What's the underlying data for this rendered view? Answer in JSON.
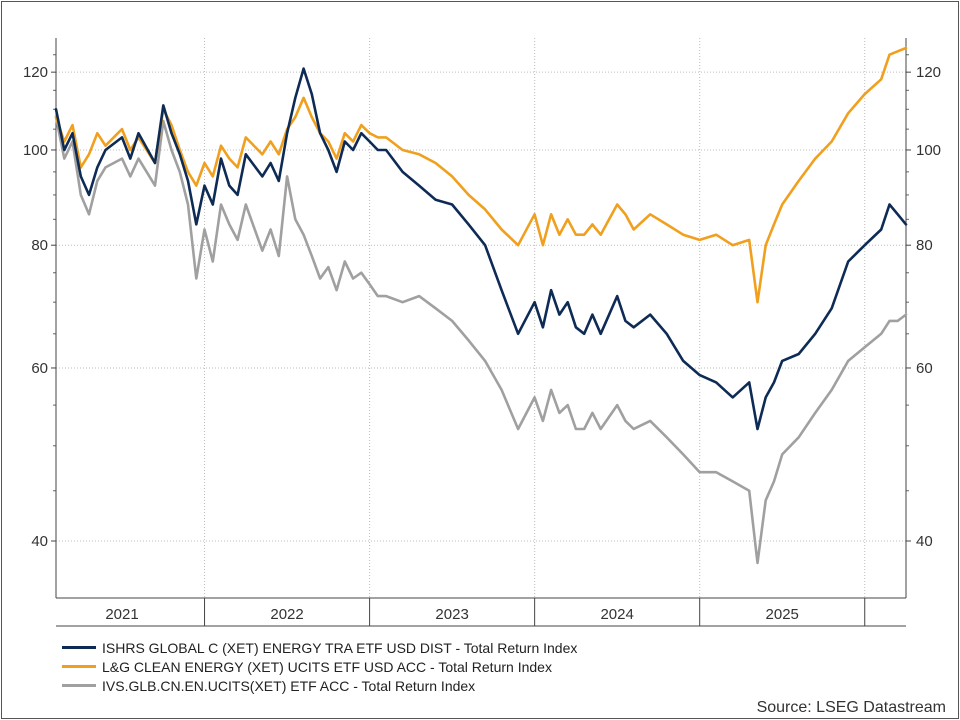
{
  "chart_data": {
    "type": "line",
    "y_scale": "log",
    "ylim": [
      35,
      130
    ],
    "y_ticks": [
      40,
      60,
      80,
      100,
      120
    ],
    "y_tick_labels": [
      "40",
      "60",
      "80",
      "100",
      "120"
    ],
    "xlim": [
      2020.6,
      2025.75
    ],
    "x_ticks": [
      2021.0,
      2022.0,
      2023.0,
      2024.0,
      2025.0
    ],
    "x_tick_labels": [
      "2021",
      "2022",
      "2023",
      "2024",
      "2025"
    ],
    "x_year_boundaries": [
      2021.5,
      2022.5,
      2023.5,
      2024.5,
      2025.5
    ],
    "grid": true,
    "legend_position": "bottom-left",
    "series": [
      {
        "name": "ISHRS GLOBAL C (XET) ENERGY TRA ETF USD DIST - Total Return Index",
        "color": "#0d2b55",
        "x": [
          2020.6,
          2020.65,
          2020.7,
          2020.75,
          2020.8,
          2020.85,
          2020.9,
          2021.0,
          2021.05,
          2021.1,
          2021.2,
          2021.25,
          2021.3,
          2021.35,
          2021.4,
          2021.45,
          2021.5,
          2021.55,
          2021.6,
          2021.65,
          2021.7,
          2021.75,
          2021.85,
          2021.9,
          2021.95,
          2022.0,
          2022.05,
          2022.1,
          2022.15,
          2022.2,
          2022.25,
          2022.3,
          2022.35,
          2022.4,
          2022.45,
          2022.5,
          2022.55,
          2022.6,
          2022.7,
          2022.8,
          2022.9,
          2023.0,
          2023.1,
          2023.2,
          2023.3,
          2023.4,
          2023.5,
          2023.55,
          2023.6,
          2023.65,
          2023.7,
          2023.75,
          2023.8,
          2023.85,
          2023.9,
          2024.0,
          2024.05,
          2024.1,
          2024.2,
          2024.3,
          2024.4,
          2024.5,
          2024.6,
          2024.7,
          2024.8,
          2024.85,
          2024.9,
          2024.95,
          2025.0,
          2025.1,
          2025.2,
          2025.3,
          2025.4,
          2025.5,
          2025.6,
          2025.65,
          2025.7,
          2025.75
        ],
        "values": [
          110,
          100,
          104,
          94,
          90,
          96,
          100,
          103,
          98,
          104,
          97,
          111,
          104,
          99,
          93,
          84,
          92,
          88,
          98,
          92,
          90,
          99,
          94,
          97,
          93,
          104,
          113,
          121,
          114,
          104,
          100,
          95,
          102,
          100,
          104,
          102,
          100,
          100,
          95,
          92,
          89,
          88,
          84,
          80,
          72,
          65,
          70,
          66,
          72,
          68,
          70,
          66,
          65,
          68,
          65,
          71,
          67,
          66,
          68,
          65,
          61,
          59,
          58,
          56,
          58,
          52,
          56,
          58,
          61,
          62,
          65,
          69,
          77,
          80,
          83,
          88,
          86,
          84
        ]
      },
      {
        "name": "L&G CLEAN ENERGY (XET) UCITS ETF USD ACC - Total Return Index",
        "color": "#f0a01e",
        "x": [
          2020.6,
          2020.65,
          2020.7,
          2020.75,
          2020.8,
          2020.85,
          2020.9,
          2021.0,
          2021.05,
          2021.1,
          2021.2,
          2021.25,
          2021.3,
          2021.35,
          2021.4,
          2021.45,
          2021.5,
          2021.55,
          2021.6,
          2021.65,
          2021.7,
          2021.75,
          2021.85,
          2021.9,
          2021.95,
          2022.0,
          2022.05,
          2022.1,
          2022.15,
          2022.2,
          2022.25,
          2022.3,
          2022.35,
          2022.4,
          2022.45,
          2022.5,
          2022.55,
          2022.6,
          2022.7,
          2022.8,
          2022.9,
          2023.0,
          2023.1,
          2023.2,
          2023.3,
          2023.4,
          2023.5,
          2023.55,
          2023.6,
          2023.65,
          2023.7,
          2023.75,
          2023.8,
          2023.85,
          2023.9,
          2024.0,
          2024.05,
          2024.1,
          2024.2,
          2024.3,
          2024.4,
          2024.5,
          2024.6,
          2024.7,
          2024.8,
          2024.85,
          2024.9,
          2024.95,
          2025.0,
          2025.1,
          2025.2,
          2025.3,
          2025.4,
          2025.5,
          2025.6,
          2025.65,
          2025.7,
          2025.75
        ],
        "values": [
          108,
          102,
          106,
          96,
          99,
          104,
          101,
          105,
          100,
          103,
          97,
          110,
          106,
          100,
          95,
          92,
          97,
          94,
          101,
          98,
          96,
          103,
          99,
          102,
          99,
          105,
          108,
          113,
          108,
          104,
          102,
          98,
          104,
          102,
          106,
          104,
          103,
          103,
          100,
          99,
          97,
          94,
          90,
          87,
          83,
          80,
          86,
          80,
          86,
          82,
          85,
          82,
          82,
          84,
          82,
          88,
          86,
          83,
          86,
          84,
          82,
          81,
          82,
          80,
          81,
          70,
          80,
          84,
          88,
          93,
          98,
          102,
          109,
          114,
          118,
          125,
          126,
          127
        ]
      },
      {
        "name": "IVS.GLB.CN.EN.UCITS(XET) ETF ACC - Total Return Index",
        "color": "#a0a0a0",
        "x": [
          2020.6,
          2020.65,
          2020.7,
          2020.75,
          2020.8,
          2020.85,
          2020.9,
          2021.0,
          2021.05,
          2021.1,
          2021.2,
          2021.25,
          2021.3,
          2021.35,
          2021.4,
          2021.45,
          2021.5,
          2021.55,
          2021.6,
          2021.65,
          2021.7,
          2021.75,
          2021.85,
          2021.9,
          2021.95,
          2022.0,
          2022.05,
          2022.1,
          2022.15,
          2022.2,
          2022.25,
          2022.3,
          2022.35,
          2022.4,
          2022.45,
          2022.5,
          2022.55,
          2022.6,
          2022.7,
          2022.8,
          2022.9,
          2023.0,
          2023.1,
          2023.2,
          2023.3,
          2023.4,
          2023.5,
          2023.55,
          2023.6,
          2023.65,
          2023.7,
          2023.75,
          2023.8,
          2023.85,
          2023.9,
          2024.0,
          2024.05,
          2024.1,
          2024.2,
          2024.3,
          2024.4,
          2024.5,
          2024.6,
          2024.7,
          2024.8,
          2024.85,
          2024.9,
          2024.95,
          2025.0,
          2025.1,
          2025.2,
          2025.3,
          2025.4,
          2025.5,
          2025.6,
          2025.65,
          2025.7,
          2025.75
        ],
        "values": [
          108,
          98,
          102,
          90,
          86,
          93,
          96,
          98,
          94,
          98,
          92,
          107,
          100,
          95,
          88,
          74,
          83,
          77,
          88,
          84,
          81,
          88,
          79,
          83,
          78,
          94,
          85,
          82,
          78,
          74,
          76,
          72,
          77,
          74,
          75,
          73,
          71,
          71,
          70,
          71,
          69,
          67,
          64,
          61,
          57,
          52,
          56,
          53,
          57,
          54,
          55,
          52,
          52,
          54,
          52,
          55,
          53,
          52,
          53,
          51,
          49,
          47,
          47,
          46,
          45,
          38,
          44,
          46,
          49,
          51,
          54,
          57,
          61,
          63,
          65,
          67,
          67,
          68
        ]
      }
    ]
  },
  "source": "Source: LSEG Datastream"
}
